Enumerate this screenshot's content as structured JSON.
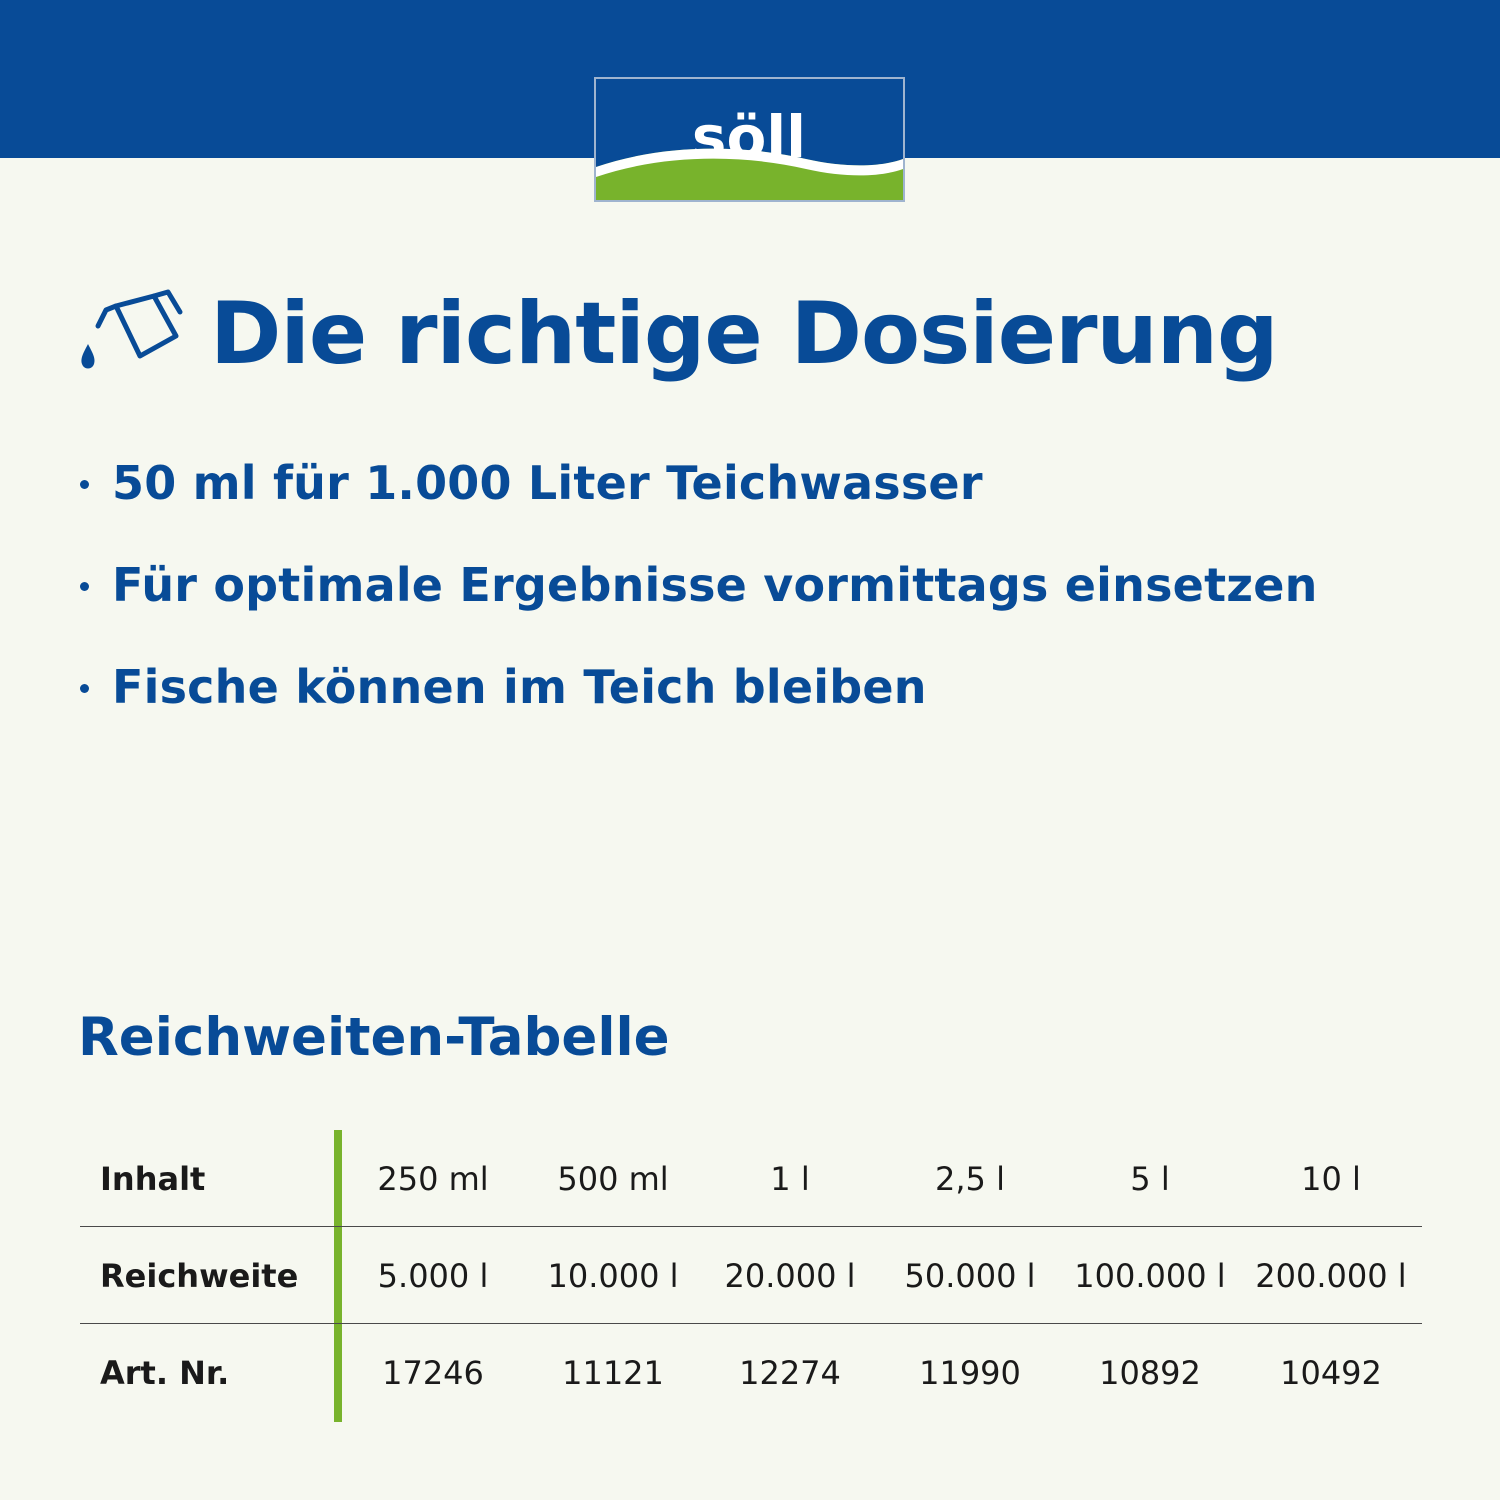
{
  "brand": {
    "logo_text": "SÖLL",
    "colors": {
      "blue": "#084b97",
      "green": "#78b32c",
      "background": "#f6f8f0"
    }
  },
  "heading": {
    "icon": "pouring-jug-icon",
    "title": "Die richtige Dosierung"
  },
  "bullets": [
    "50 ml für 1.000 Liter Teichwasser",
    "Für optimale Ergebnisse vormittags einsetzen",
    "Fische können im Teich bleiben"
  ],
  "table": {
    "title": "Reichweiten-Tabelle",
    "rows": [
      {
        "label": "Inhalt",
        "values": [
          "250 ml",
          "500 ml",
          "1 l",
          "2,5 l",
          "5 l",
          "10 l"
        ]
      },
      {
        "label": "Reichweite",
        "values": [
          "5.000 l",
          "10.000 l",
          "20.000 l",
          "50.000 l",
          "100.000 l",
          "200.000 l"
        ]
      },
      {
        "label": "Art. Nr.",
        "values": [
          "17246",
          "11121",
          "12274",
          "11990",
          "10892",
          "10492"
        ]
      }
    ]
  }
}
